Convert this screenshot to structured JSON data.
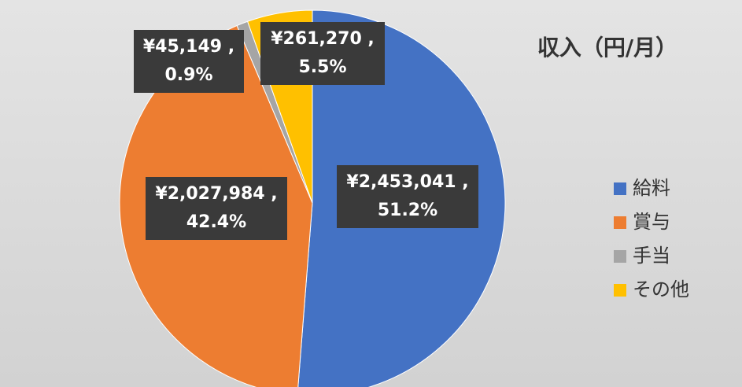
{
  "chart_data": {
    "type": "pie",
    "title": "収入（円/月）",
    "categories": [
      "給料",
      "賞与",
      "手当",
      "その他"
    ],
    "values": [
      2453041,
      2027984,
      45149,
      261270
    ],
    "value_labels": [
      "¥2,453,041 ,",
      "¥2,027,984 ,",
      "¥45,149 ,",
      "¥261,270 ,"
    ],
    "percent_labels": [
      "51.2%",
      "42.4%",
      "0.9%",
      "5.5%"
    ],
    "colors": [
      "#4472c4",
      "#ed7d31",
      "#a5a5a5",
      "#ffc000"
    ],
    "legend": "right"
  }
}
